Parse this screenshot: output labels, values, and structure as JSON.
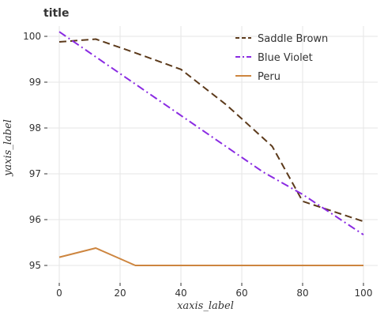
{
  "chart_data": {
    "type": "line",
    "title": "title",
    "xlabel": "xaxis_label",
    "ylabel": "yaxis_label",
    "xlim": [
      0,
      100
    ],
    "ylim": [
      95,
      100
    ],
    "x_ticks": [
      "0",
      "20",
      "40",
      "60",
      "80",
      "100"
    ],
    "y_ticks": [
      "95",
      "96",
      "97",
      "98",
      "99",
      "100"
    ],
    "grid": true,
    "legend_position": "top-right",
    "series": [
      {
        "name": "Saddle Brown",
        "color": "#5c3a1b",
        "dash": "dashed",
        "x": [
          0,
          12,
          25,
          40,
          55,
          70,
          80,
          100
        ],
        "y": [
          99.88,
          99.94,
          99.64,
          99.28,
          98.5,
          97.6,
          96.4,
          95.96
        ]
      },
      {
        "name": "Blue Violet",
        "color": "#8a2be2",
        "dash": "dashdot",
        "x": [
          0,
          67,
          80,
          100
        ],
        "y": [
          100.1,
          97.04,
          96.55,
          95.67
        ]
      },
      {
        "name": "Peru",
        "color": "#cd853f",
        "dash": "solid",
        "x": [
          0,
          12,
          25,
          100
        ],
        "y": [
          95.18,
          95.38,
          95.0,
          95.0
        ]
      }
    ]
  }
}
